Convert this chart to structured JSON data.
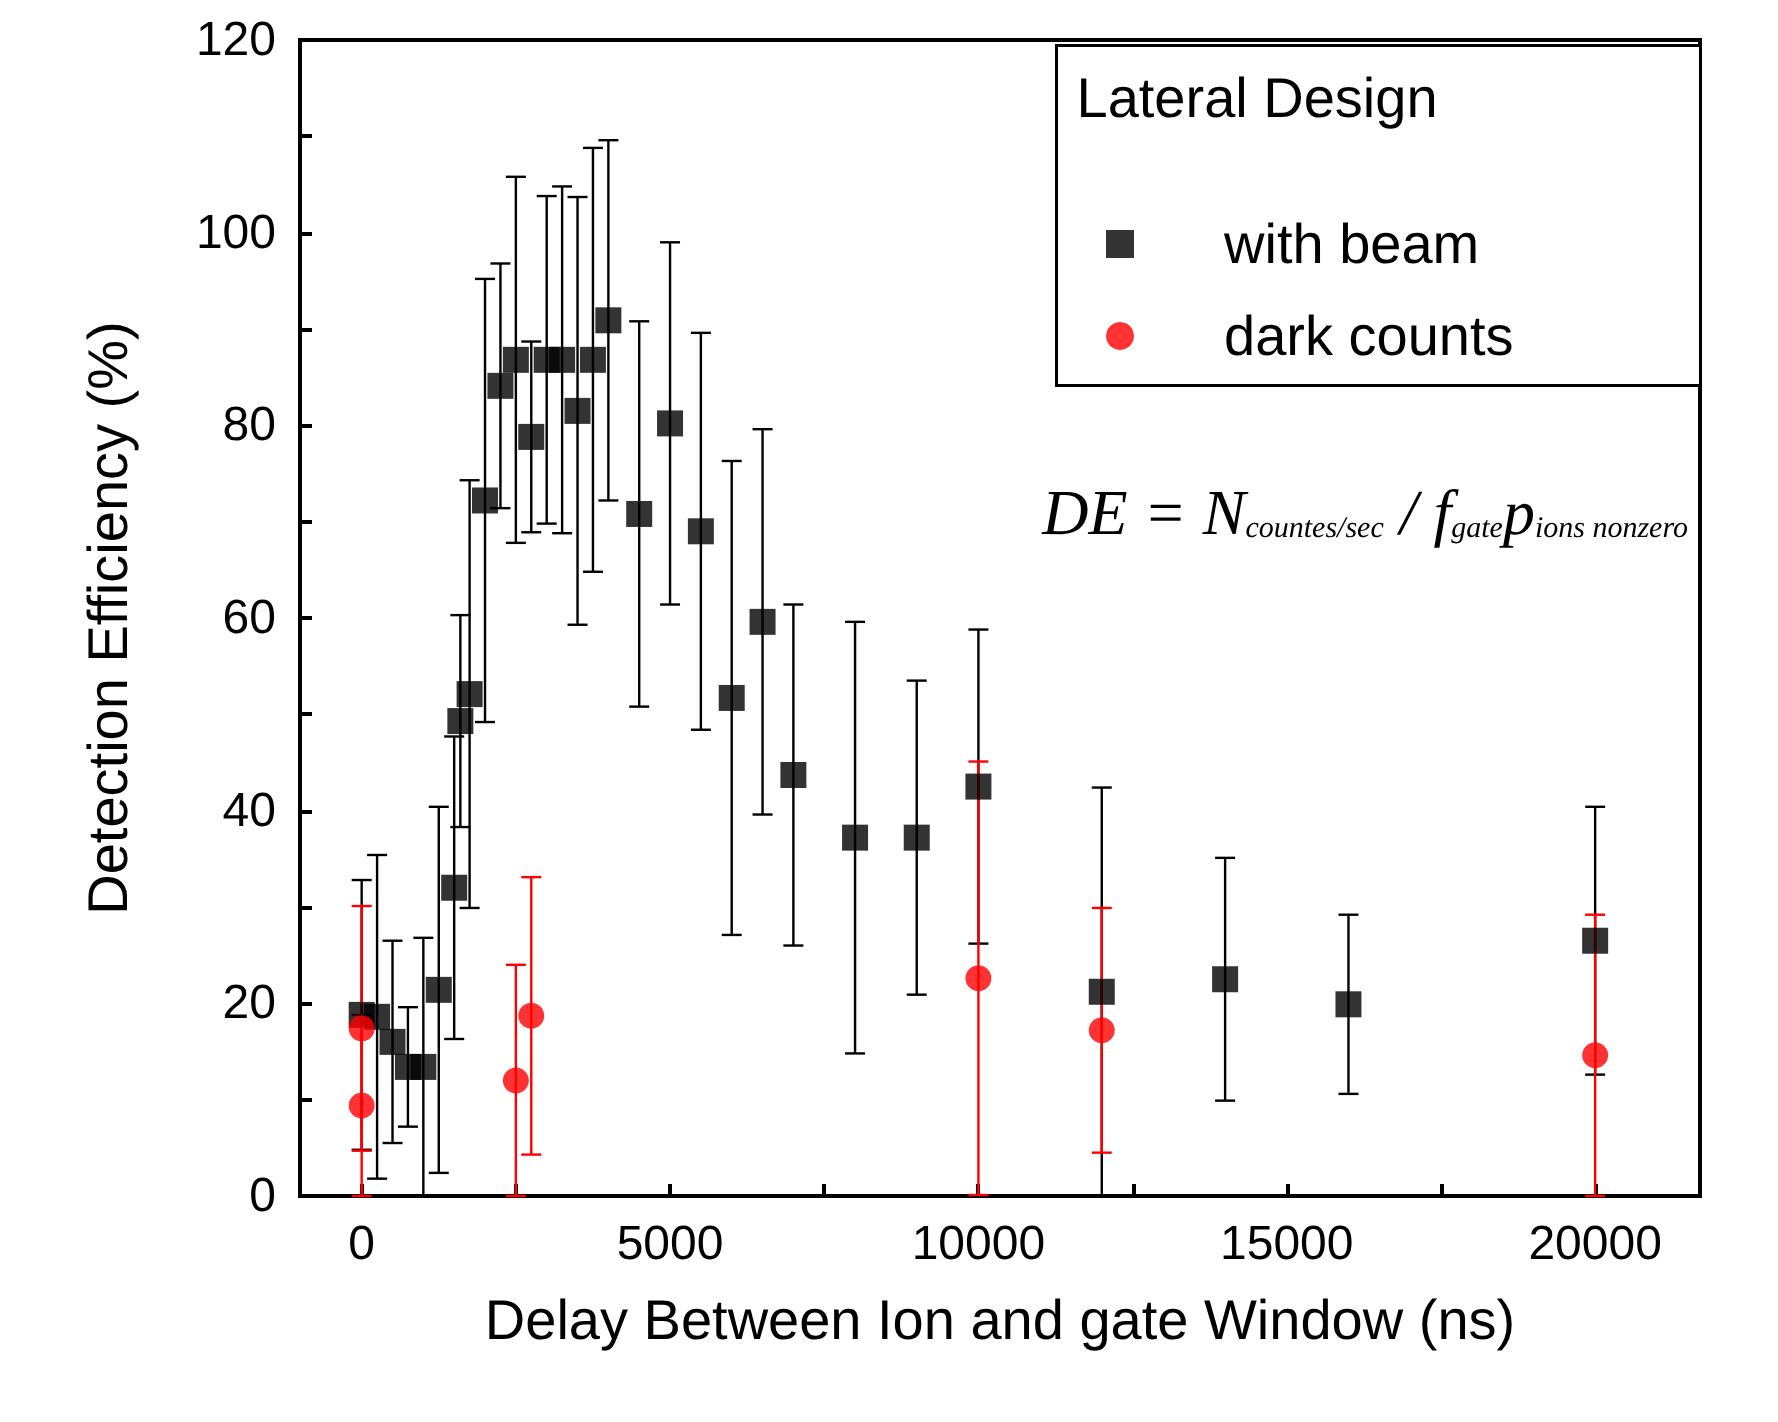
{
  "chart_data": {
    "type": "scatter",
    "xlabel": "Delay Between Ion and gate Window (ns)",
    "ylabel": "Detection Efficiency (%)",
    "legend_title": "Lateral Design",
    "legend": "top right",
    "grid": false,
    "annotations": [
      "DE = N$_{countes/sec}$ / f$_{gate}$p$_{ions nonzero}$"
    ],
    "xlim": [
      -1000,
      21700
    ],
    "ylim": [
      0,
      120
    ],
    "xticks": [
      0,
      {
        "value": 2500,
        "label": null
      },
      5000,
      {
        "value": 7500,
        "label": null
      },
      10000,
      {
        "value": 12500,
        "label": null
      },
      15000,
      {
        "value": 17500,
        "label": null
      },
      20000
    ],
    "yticks": [
      0,
      {
        "value": 10,
        "label": null
      },
      20,
      {
        "value": 30,
        "label": null
      },
      40,
      {
        "value": 50,
        "label": null
      },
      60,
      {
        "value": 70,
        "label": null
      },
      80,
      {
        "value": 90,
        "label": null
      },
      100,
      {
        "value": 110,
        "label": null
      },
      120
    ],
    "series": [
      {
        "name": "with beam",
        "color": "#000000",
        "marker": "square",
        "x": [
          0,
          250,
          500,
          750,
          1000,
          1250,
          1500,
          1600,
          1750,
          2000,
          2250,
          2500,
          2750,
          3000,
          3250,
          3500,
          3750,
          4000,
          4500,
          5000,
          5500,
          6000,
          6500,
          7000,
          8000,
          9000,
          10000,
          12000,
          14000,
          16000,
          20000
        ],
        "values": [
          18.8,
          18.6,
          16.0,
          13.4,
          13.4,
          21.4,
          32.0,
          49.3,
          52.1,
          72.2,
          84.1,
          86.8,
          78.8,
          86.8,
          86.8,
          81.5,
          86.8,
          90.9,
          70.8,
          80.2,
          69.0,
          51.7,
          59.6,
          43.7,
          37.2,
          37.2,
          42.5,
          21.2,
          22.5,
          19.9,
          26.5
        ],
        "errors": [
          14,
          16.8,
          10.5,
          6.2,
          13.4,
          19,
          15.7,
          11,
          22.2,
          23,
          12.7,
          19,
          9.9,
          17,
          18,
          22.2,
          22,
          18.7,
          20,
          18.8,
          20.6,
          24.6,
          20,
          17.7,
          22.4,
          16.3,
          16.3,
          21.2,
          12.6,
          9.3,
          13.9
        ]
      },
      {
        "name": "dark counts",
        "color": "#ff0000",
        "marker": "circle",
        "x": [
          0,
          0,
          2500,
          2750,
          10000,
          12000,
          20000
        ],
        "values": [
          17.4,
          9.4,
          12.0,
          18.7,
          22.6,
          17.2,
          14.6
        ],
        "errors": [
          12.7,
          9.4,
          12.0,
          14.4,
          22.5,
          12.7,
          14.6
        ]
      }
    ]
  }
}
